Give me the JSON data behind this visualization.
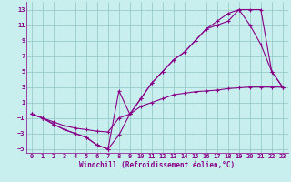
{
  "xlabel": "Windchill (Refroidissement éolien,°C)",
  "xlim": [
    -0.5,
    23.5
  ],
  "ylim": [
    -5.5,
    14.0
  ],
  "xticks": [
    0,
    1,
    2,
    3,
    4,
    5,
    6,
    7,
    8,
    9,
    10,
    11,
    12,
    13,
    14,
    15,
    16,
    17,
    18,
    19,
    20,
    21,
    22,
    23
  ],
  "yticks": [
    -5,
    -3,
    -1,
    1,
    3,
    5,
    7,
    9,
    11,
    13
  ],
  "bg_color": "#c8eeee",
  "line_color": "#880088",
  "grid_color": "#99cccc",
  "line1_x": [
    0,
    1,
    2,
    3,
    4,
    5,
    6,
    7,
    8,
    9,
    10,
    11,
    12,
    13,
    14,
    15,
    16,
    17,
    18,
    19,
    20,
    21,
    22,
    23
  ],
  "line1_y": [
    -0.5,
    -1.0,
    -1.8,
    -2.5,
    -3.0,
    -3.5,
    -4.5,
    -5.0,
    -3.2,
    -0.5,
    1.5,
    3.5,
    5.0,
    6.5,
    7.5,
    9.0,
    10.5,
    11.5,
    12.5,
    13.0,
    13.0,
    13.0,
    5.0,
    3.0
  ],
  "line2_x": [
    0,
    1,
    2,
    3,
    4,
    5,
    6,
    7,
    8,
    9,
    10,
    11,
    12,
    13,
    14,
    15,
    16,
    17,
    18,
    19,
    20,
    21,
    22,
    23
  ],
  "line2_y": [
    -0.5,
    -1.0,
    -1.8,
    -2.5,
    -3.0,
    -3.5,
    -4.5,
    -5.0,
    2.5,
    -0.5,
    1.5,
    3.5,
    5.0,
    6.5,
    7.5,
    9.0,
    10.5,
    11.0,
    11.5,
    13.0,
    11.0,
    8.5,
    5.0,
    3.0
  ],
  "line3_x": [
    0,
    1,
    2,
    3,
    4,
    5,
    6,
    7,
    8,
    9,
    10,
    11,
    12,
    13,
    14,
    15,
    16,
    17,
    18,
    19,
    20,
    21,
    22,
    23
  ],
  "line3_y": [
    -0.5,
    -1.0,
    -1.5,
    -2.0,
    -2.3,
    -2.5,
    -2.7,
    -2.8,
    -1.0,
    -0.5,
    0.5,
    1.0,
    1.5,
    2.0,
    2.2,
    2.4,
    2.5,
    2.6,
    2.8,
    2.9,
    3.0,
    3.0,
    3.0,
    3.0
  ]
}
